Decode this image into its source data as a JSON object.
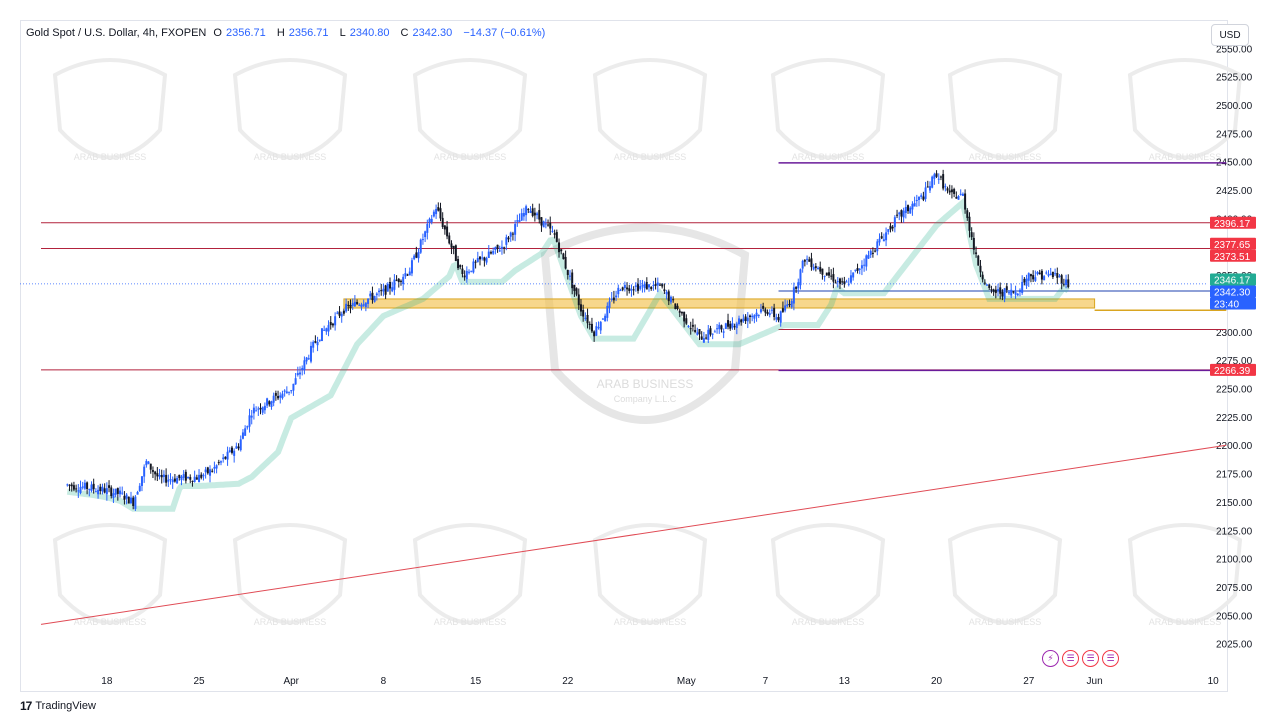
{
  "header": {
    "symbol": "Gold Spot / U.S. Dollar, 4h, FXOPEN",
    "open_label": "O",
    "open": "2356.71",
    "high_label": "H",
    "high": "2356.71",
    "low_label": "L",
    "low": "2340.80",
    "close_label": "C",
    "close": "2342.30",
    "change": "−14.37 (−0.61%)"
  },
  "currency_button": "USD",
  "footer": {
    "logo": "17",
    "brand": "TradingView"
  },
  "watermark": {
    "line1": "ARAB BUSINESS",
    "line2": "Company L.L.C"
  },
  "event_icons": [
    "lightning-icon",
    "us-flag-icon",
    "us-flag-icon",
    "us-flag-icon"
  ],
  "colors": {
    "up": "#2962ff",
    "down": "#131722",
    "resistance": "#b2223c",
    "purple_level": "#6a1b9a",
    "blue_level": "#1e40af",
    "zone": "#f2c14e",
    "trend": "#e04b55",
    "price_tag_red": "#f23645",
    "price_tag_green": "#22ab94",
    "price_tag_blue": "#2962ff"
  },
  "chart_data": {
    "type": "candlestick",
    "instrument": "Gold Spot / U.S. Dollar",
    "timeframe": "4h",
    "ylim": [
      2000,
      2575
    ],
    "y_ticks": [
      2025,
      2050,
      2075,
      2100,
      2125,
      2150,
      2175,
      2200,
      2225,
      2250,
      2275,
      2300,
      2325,
      2350,
      2375,
      2400,
      2425,
      2450,
      2475,
      2500,
      2525,
      2550
    ],
    "x_ticks": [
      "18",
      "25",
      "Apr",
      "8",
      "15",
      "22",
      "May",
      "7",
      "13",
      "20",
      "27",
      "Jun",
      "10"
    ],
    "close_path": [
      [
        "2024-03-15",
        2165
      ],
      [
        "2024-03-17",
        2162
      ],
      [
        "2024-03-18",
        2160
      ],
      [
        "2024-03-19",
        2157
      ],
      [
        "2024-03-20",
        2150
      ],
      [
        "2024-03-21",
        2185
      ],
      [
        "2024-03-22",
        2170
      ],
      [
        "2024-03-25",
        2172
      ],
      [
        "2024-03-26",
        2178
      ],
      [
        "2024-03-28",
        2200
      ],
      [
        "2024-03-29",
        2230
      ],
      [
        "2024-04-01",
        2250
      ],
      [
        "2024-04-03",
        2295
      ],
      [
        "2024-04-05",
        2320
      ],
      [
        "2024-04-08",
        2335
      ],
      [
        "2024-04-10",
        2355
      ],
      [
        "2024-04-12",
        2410
      ],
      [
        "2024-04-14",
        2350
      ],
      [
        "2024-04-15",
        2360
      ],
      [
        "2024-04-17",
        2375
      ],
      [
        "2024-04-19",
        2410
      ],
      [
        "2024-04-21",
        2385
      ],
      [
        "2024-04-23",
        2320
      ],
      [
        "2024-04-24",
        2300
      ],
      [
        "2024-04-26",
        2340
      ],
      [
        "2024-04-29",
        2340
      ],
      [
        "2024-05-01",
        2310
      ],
      [
        "2024-05-02",
        2295
      ],
      [
        "2024-05-03",
        2300
      ],
      [
        "2024-05-06",
        2315
      ],
      [
        "2024-05-07",
        2320
      ],
      [
        "2024-05-08",
        2312
      ],
      [
        "2024-05-09",
        2330
      ],
      [
        "2024-05-10",
        2365
      ],
      [
        "2024-05-13",
        2340
      ],
      [
        "2024-05-14",
        2355
      ],
      [
        "2024-05-16",
        2385
      ],
      [
        "2024-05-17",
        2400
      ],
      [
        "2024-05-19",
        2420
      ],
      [
        "2024-05-20",
        2440
      ],
      [
        "2024-05-21",
        2420
      ],
      [
        "2024-05-22",
        2420
      ],
      [
        "2024-05-23",
        2365
      ],
      [
        "2024-05-24",
        2335
      ],
      [
        "2024-05-26",
        2335
      ],
      [
        "2024-05-27",
        2350
      ],
      [
        "2024-05-29",
        2350
      ],
      [
        "2024-05-30",
        2342.3
      ]
    ],
    "horizontal_levels": [
      {
        "price": 2396.17,
        "color": "resistance",
        "from": "2024-03-13",
        "to": "2024-06-11"
      },
      {
        "price": 2373.51,
        "color": "resistance",
        "from": "2024-03-13",
        "to": "2024-06-11"
      },
      {
        "price": 2266.39,
        "color": "resistance",
        "from": "2024-03-13",
        "to": "2024-06-11"
      },
      {
        "price": 2449,
        "color": "purple_level",
        "from": "2024-05-08",
        "to": "2024-06-11"
      },
      {
        "price": 2266,
        "color": "purple_level",
        "from": "2024-05-08",
        "to": "2024-06-11"
      },
      {
        "price": 2336,
        "color": "blue_level",
        "from": "2024-05-08",
        "to": "2024-06-11"
      },
      {
        "price": 2302,
        "color": "resistance",
        "from": "2024-05-08",
        "to": "2024-06-11"
      }
    ],
    "zone": {
      "from": "2024-04-05",
      "to": "2024-06-01",
      "low": 2321,
      "high": 2329
    },
    "zone_tail": {
      "price": 2319,
      "from": "2024-06-01",
      "to": "2024-06-11"
    },
    "trendline": {
      "from": [
        "2024-03-13",
        2042
      ],
      "to": [
        "2024-06-11",
        2200
      ]
    },
    "price_tags": [
      {
        "text": "2396.17",
        "price": 2396.17,
        "color": "price_tag_red"
      },
      {
        "text": "2377.65",
        "price": 2377.65,
        "color": "price_tag_red"
      },
      {
        "text": "2373.51",
        "price": 2373.51,
        "color": "price_tag_red"
      },
      {
        "text": "2346.17",
        "price": 2346.17,
        "color": "price_tag_green"
      },
      {
        "text": "2342.30",
        "price": 2342.3,
        "color": "price_tag_blue"
      },
      {
        "text": "23:40",
        "price": 2342.3,
        "color": "price_tag_blue",
        "second_line": true
      },
      {
        "text": "2266.39",
        "price": 2266.39,
        "color": "price_tag_red"
      }
    ]
  }
}
